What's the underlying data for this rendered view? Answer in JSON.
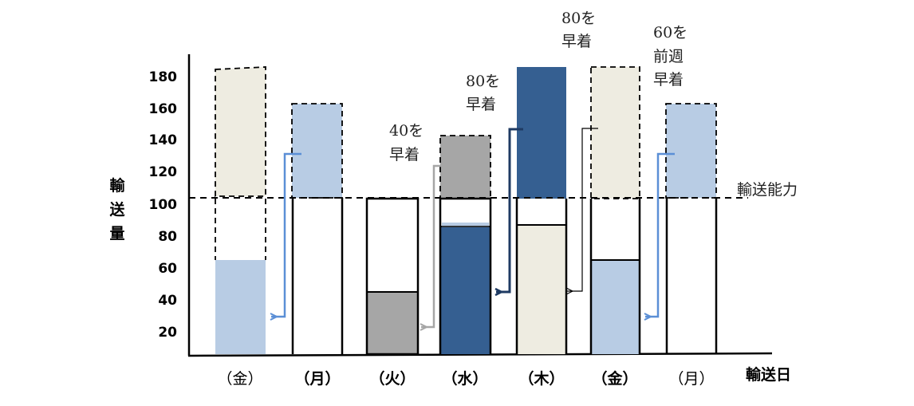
{
  "chart": {
    "ylabel": [
      "輸",
      "送",
      "量"
    ],
    "xlabel": "輸送日",
    "capacity_label": "輸送能力",
    "yticks": [
      180,
      160,
      140,
      120,
      100,
      80,
      60,
      40,
      20
    ],
    "categories": [
      "（金）",
      "（月）",
      "（火）",
      "（水）",
      "（木）",
      "（金）",
      "（月）"
    ],
    "notes": {
      "wed": [
        "40を",
        "早着"
      ],
      "thu": [
        "80を",
        "早着"
      ],
      "fri": [
        "80を",
        "早着"
      ],
      "mon": [
        "60を",
        "前週",
        "早着"
      ]
    },
    "colors": {
      "light_blue": "#b8cce4",
      "beige": "#eeece1",
      "gray": "#a6a6a6",
      "navy": "#355f91"
    }
  },
  "chart_data": {
    "type": "bar",
    "capacity": 100,
    "ylim": [
      0,
      200
    ],
    "categories": [
      "（金）",
      "（月）",
      "（火）",
      "（水）",
      "（木）",
      "（金）",
      "（月）"
    ],
    "bars": [
      {
        "category": "（金）",
        "segments": [
          {
            "from": 0,
            "to": 60,
            "color": "light_blue"
          },
          {
            "from": 100,
            "to": 180,
            "color": "beige",
            "dashed": true
          }
        ]
      },
      {
        "category": "（月）",
        "segments": [
          {
            "from": 100,
            "to": 160,
            "color": "light_blue"
          }
        ]
      },
      {
        "category": "（火）",
        "segments": [
          {
            "from": 0,
            "to": 40,
            "color": "gray"
          }
        ]
      },
      {
        "category": "（水）",
        "segments": [
          {
            "from": 0,
            "to": 80,
            "color": "navy"
          },
          {
            "from": 100,
            "to": 140,
            "color": "gray"
          }
        ]
      },
      {
        "category": "（木）",
        "segments": [
          {
            "from": 0,
            "to": 80,
            "color": "beige"
          },
          {
            "from": 100,
            "to": 180,
            "color": "navy"
          }
        ]
      },
      {
        "category": "（金）",
        "segments": [
          {
            "from": 0,
            "to": 60,
            "color": "light_blue"
          },
          {
            "from": 100,
            "to": 180,
            "color": "beige"
          }
        ]
      },
      {
        "category": "（月）",
        "segments": [
          {
            "from": 100,
            "to": 160,
            "color": "light_blue"
          }
        ]
      }
    ]
  }
}
